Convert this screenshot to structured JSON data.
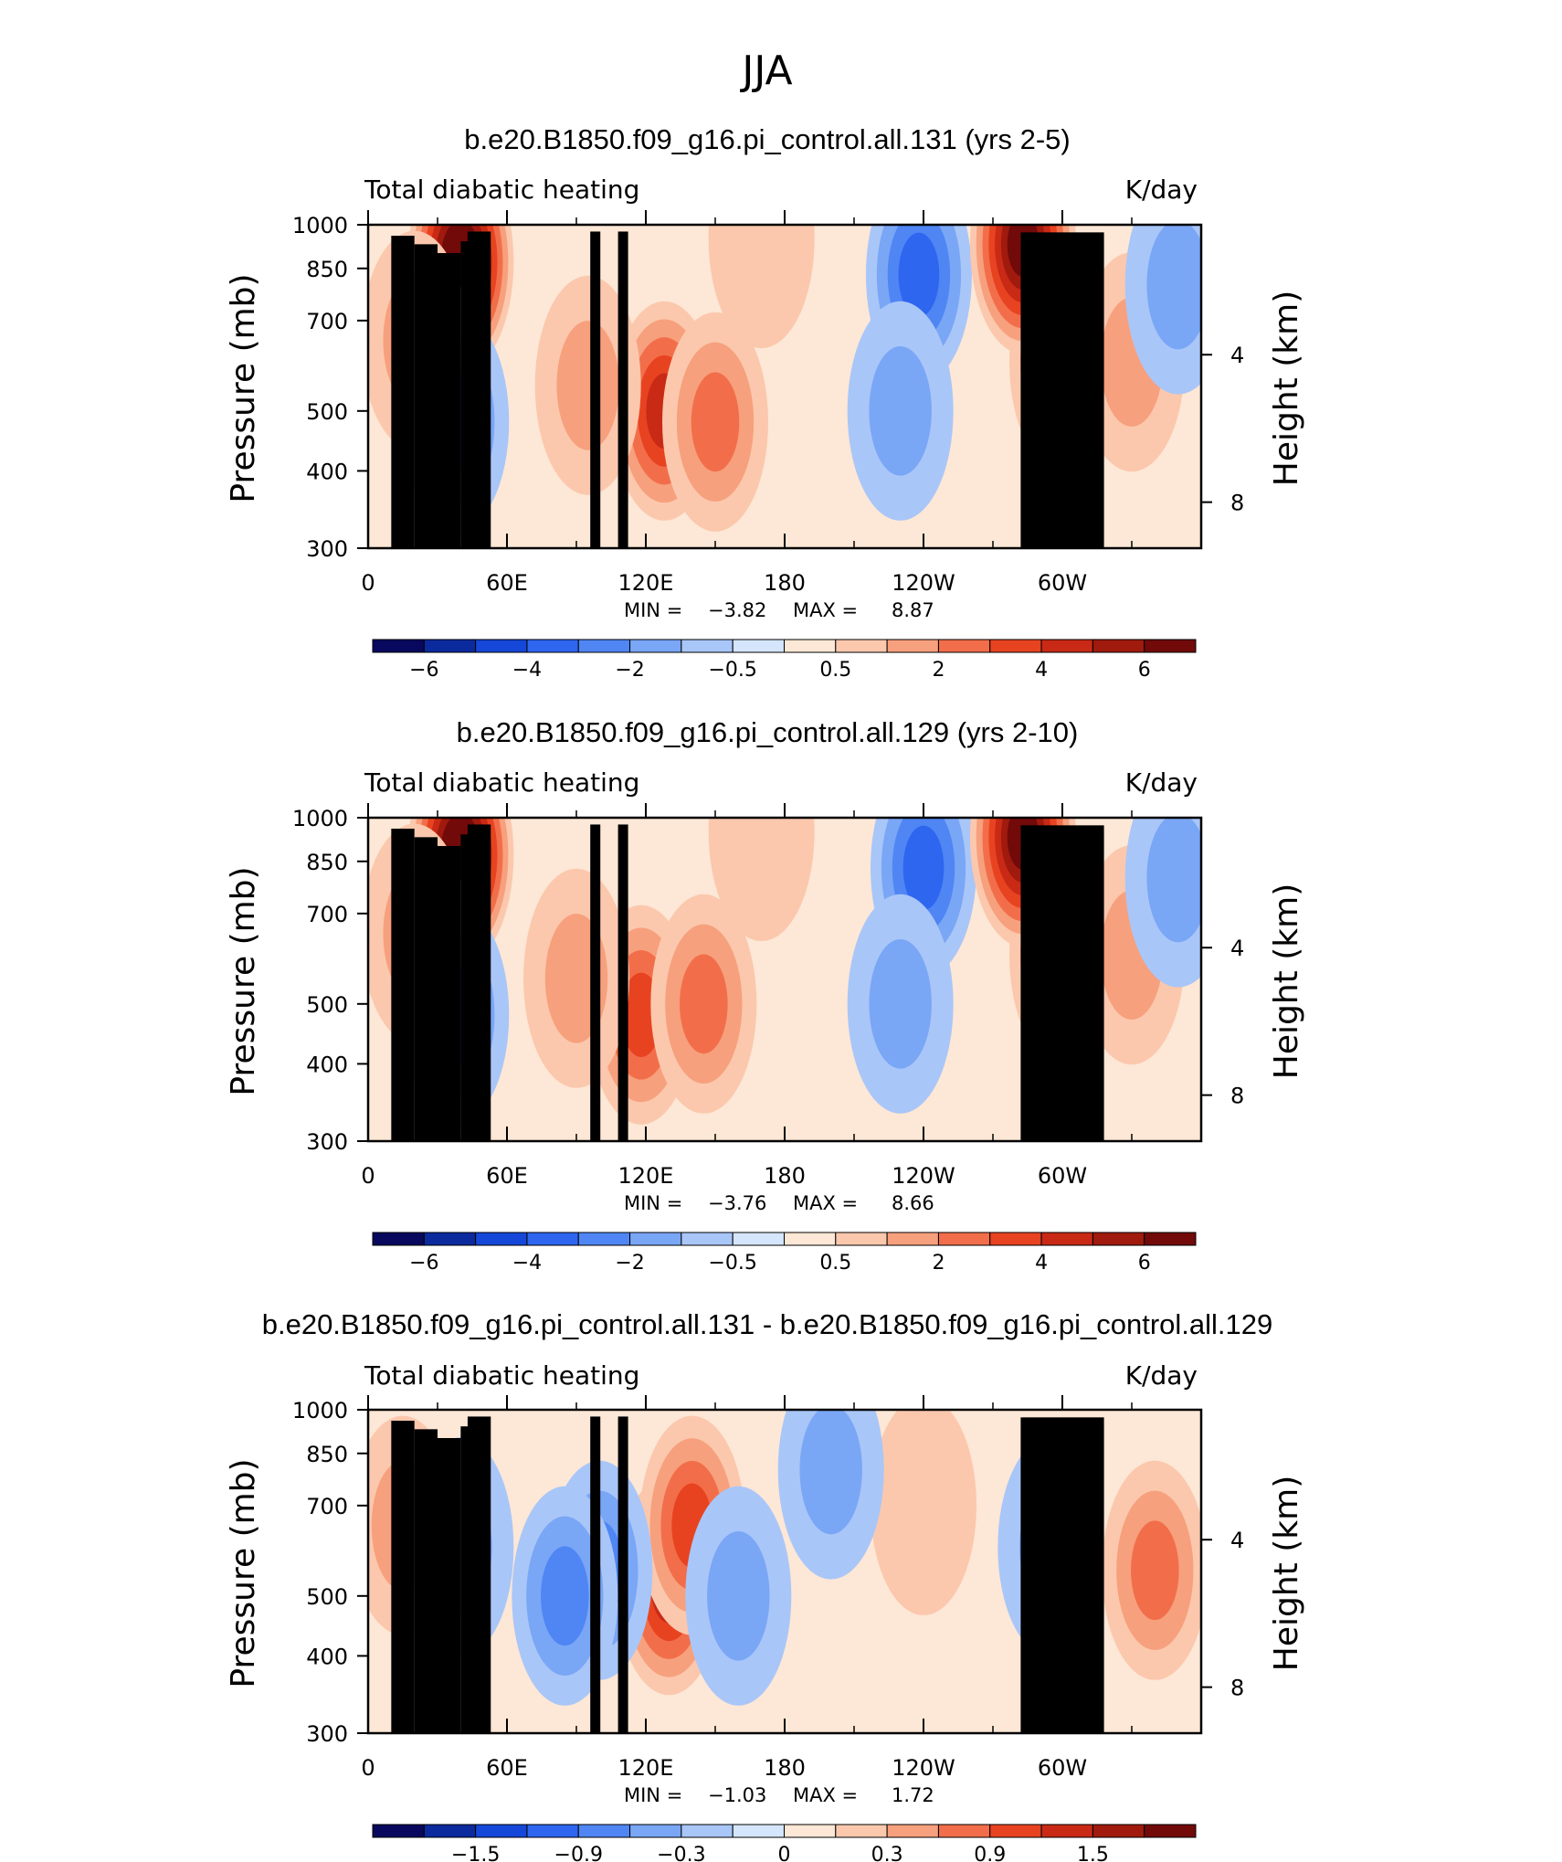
{
  "title": "JJA",
  "common": {
    "subtitle_left": "Total diabatic heating",
    "subtitle_right": "K/day",
    "ylabel_left": "Pressure (mb)",
    "ylabel_right": "Height (km)",
    "min_label": "MIN =",
    "max_label": "MAX =",
    "p_ticks": [
      300,
      400,
      500,
      700,
      850,
      1000
    ],
    "p_tick_labels": [
      "300",
      "400",
      "500",
      "700",
      "850",
      "1000"
    ],
    "z_ticks": [
      8,
      4
    ],
    "z_tick_labels": [
      "8",
      "4"
    ],
    "lon_ticks": [
      0,
      60,
      120,
      180,
      240,
      300
    ],
    "lon_tick_labels": [
      "0",
      "60E",
      "120E",
      "180",
      "120W",
      "60W"
    ],
    "lon_minor_ticks": [
      30,
      90,
      150,
      210,
      270,
      330
    ],
    "xlim": [
      0,
      360
    ],
    "plim": [
      300,
      1000
    ]
  },
  "chart_data": [
    {
      "type": "heatmap",
      "title": "b.e20.B1850.f09_g16.pi_control.all.131 (yrs 2-5)",
      "min_value": "−3.82",
      "max_value": "8.87",
      "colorbar_levels": [
        -7,
        -6,
        -5,
        -4,
        -3,
        -2,
        -1,
        -0.5,
        0,
        0.5,
        1,
        2,
        3,
        4,
        5,
        6,
        7
      ],
      "colorbar_tick_labels": [
        "−6",
        "−4",
        "−2",
        "−0.5",
        "0.5",
        "2",
        "4",
        "6"
      ],
      "features": [
        {
          "lon": 40,
          "p": 870,
          "value": 7.5
        },
        {
          "lon": 20,
          "p": 650,
          "value": 1.5
        },
        {
          "lon": 38,
          "p": 480,
          "value": -2.0
        },
        {
          "lon": 128,
          "p": 500,
          "value": 4.0
        },
        {
          "lon": 95,
          "p": 550,
          "value": 1.5
        },
        {
          "lon": 150,
          "p": 480,
          "value": 2.0
        },
        {
          "lon": 238,
          "p": 830,
          "value": -3.5
        },
        {
          "lon": 230,
          "p": 500,
          "value": -1.5
        },
        {
          "lon": 300,
          "p": 600,
          "value": 3.0
        },
        {
          "lon": 283,
          "p": 930,
          "value": 6.0
        },
        {
          "lon": 330,
          "p": 600,
          "value": 1.0
        },
        {
          "lon": 350,
          "p": 800,
          "value": -1.0
        },
        {
          "lon": 170,
          "p": 950,
          "value": 0.5
        }
      ]
    },
    {
      "type": "heatmap",
      "title": "b.e20.B1850.f09_g16.pi_control.all.129 (yrs 2-10)",
      "min_value": "−3.76",
      "max_value": "8.66",
      "colorbar_levels": [
        -7,
        -6,
        -5,
        -4,
        -3,
        -2,
        -1,
        -0.5,
        0,
        0.5,
        1,
        2,
        3,
        4,
        5,
        6,
        7
      ],
      "colorbar_tick_labels": [
        "−6",
        "−4",
        "−2",
        "−0.5",
        "0.5",
        "2",
        "4",
        "6"
      ],
      "features": [
        {
          "lon": 40,
          "p": 870,
          "value": 7.5
        },
        {
          "lon": 20,
          "p": 650,
          "value": 1.5
        },
        {
          "lon": 38,
          "p": 480,
          "value": -2.0
        },
        {
          "lon": 118,
          "p": 480,
          "value": 3.5
        },
        {
          "lon": 90,
          "p": 550,
          "value": 1.5
        },
        {
          "lon": 145,
          "p": 500,
          "value": 2.5
        },
        {
          "lon": 240,
          "p": 830,
          "value": -3.5
        },
        {
          "lon": 230,
          "p": 500,
          "value": -1.5
        },
        {
          "lon": 300,
          "p": 600,
          "value": 3.0
        },
        {
          "lon": 283,
          "p": 930,
          "value": 6.0
        },
        {
          "lon": 330,
          "p": 600,
          "value": 1.0
        },
        {
          "lon": 350,
          "p": 800,
          "value": -1.0
        },
        {
          "lon": 170,
          "p": 950,
          "value": 0.5
        }
      ]
    },
    {
      "type": "heatmap",
      "title": "b.e20.B1850.f09_g16.pi_control.all.131 - b.e20.B1850.f09_g16.pi_control.all.129",
      "min_value": "−1.03",
      "max_value": "1.72",
      "colorbar_levels": [
        -2.1,
        -1.8,
        -1.5,
        -1.2,
        -0.9,
        -0.6,
        -0.3,
        -0.15,
        0,
        0.15,
        0.3,
        0.6,
        0.9,
        1.2,
        1.5,
        1.8,
        2.1
      ],
      "colorbar_tick_labels": [
        "−1.5",
        "−0.9",
        "−0.3",
        "0",
        "0.3",
        "0.9",
        "1.5"
      ],
      "features": [
        {
          "lon": 130,
          "p": 520,
          "value": 1.4
        },
        {
          "lon": 140,
          "p": 650,
          "value": 1.0
        },
        {
          "lon": 100,
          "p": 550,
          "value": -0.8
        },
        {
          "lon": 85,
          "p": 500,
          "value": -0.6
        },
        {
          "lon": 40,
          "p": 600,
          "value": -0.5
        },
        {
          "lon": 160,
          "p": 500,
          "value": -0.5
        },
        {
          "lon": 240,
          "p": 700,
          "value": 0.2
        },
        {
          "lon": 340,
          "p": 550,
          "value": 0.8
        },
        {
          "lon": 295,
          "p": 600,
          "value": -0.5
        },
        {
          "lon": 15,
          "p": 650,
          "value": 0.3
        },
        {
          "lon": 200,
          "p": 800,
          "value": -0.3
        }
      ]
    }
  ]
}
